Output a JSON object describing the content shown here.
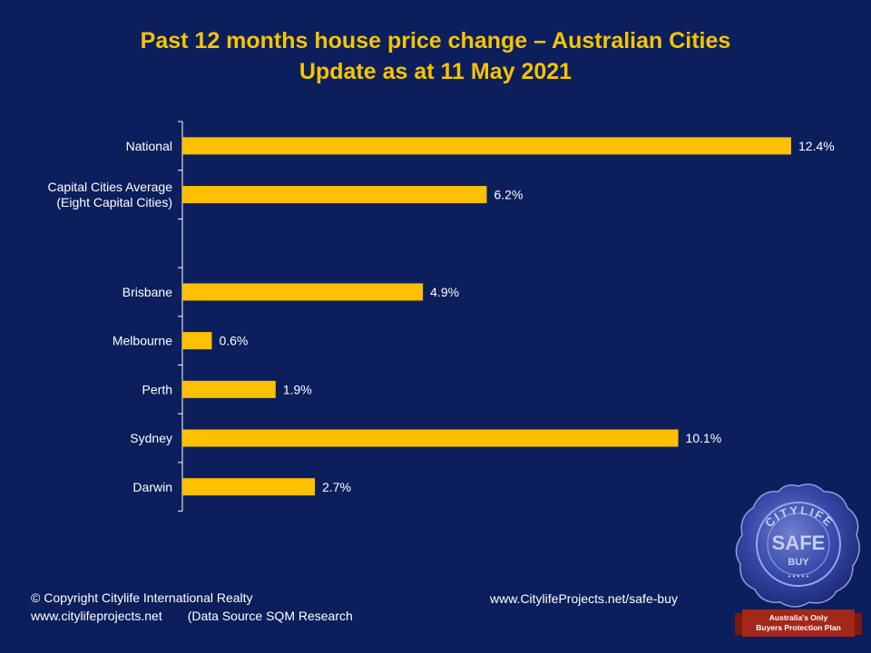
{
  "title": {
    "line1": "Past 12 months house price change – Australian Cities",
    "line2": "Update as at 11 May 2021"
  },
  "colors": {
    "background": "#0c1f5c",
    "bar": "#ffc000",
    "title": "#f5c400",
    "text": "#ffffff"
  },
  "chart_data": {
    "type": "bar",
    "orientation": "horizontal",
    "categories": [
      "National",
      "Capital Cities Average\n(Eight Capital Cities)",
      "",
      "Brisbane",
      "Melbourne",
      "Perth",
      "Sydney",
      "Darwin"
    ],
    "values": [
      12.4,
      6.2,
      null,
      4.9,
      0.6,
      1.9,
      10.1,
      2.7
    ],
    "data_labels": [
      "12.4%",
      "6.2%",
      "",
      "4.9%",
      "0.6%",
      "1.9%",
      "10.1%",
      "2.7%"
    ],
    "xlim": [
      0,
      12.4
    ],
    "grid": false,
    "legend": "none"
  },
  "footer": {
    "copyright": "© Copyright Citylife International  Realty",
    "website": "www.citylifeprojects.net",
    "source": "(Data Source SQM Research",
    "safe_buy_url": "www.CitylifeProjects.net/safe-buy"
  },
  "seal": {
    "text_top": "CITYLIFE",
    "text_main": "SAFE",
    "text_sub": "BUY",
    "ribbon_line1": "Australia's Only",
    "ribbon_line2": "Buyers Protection Plan"
  }
}
